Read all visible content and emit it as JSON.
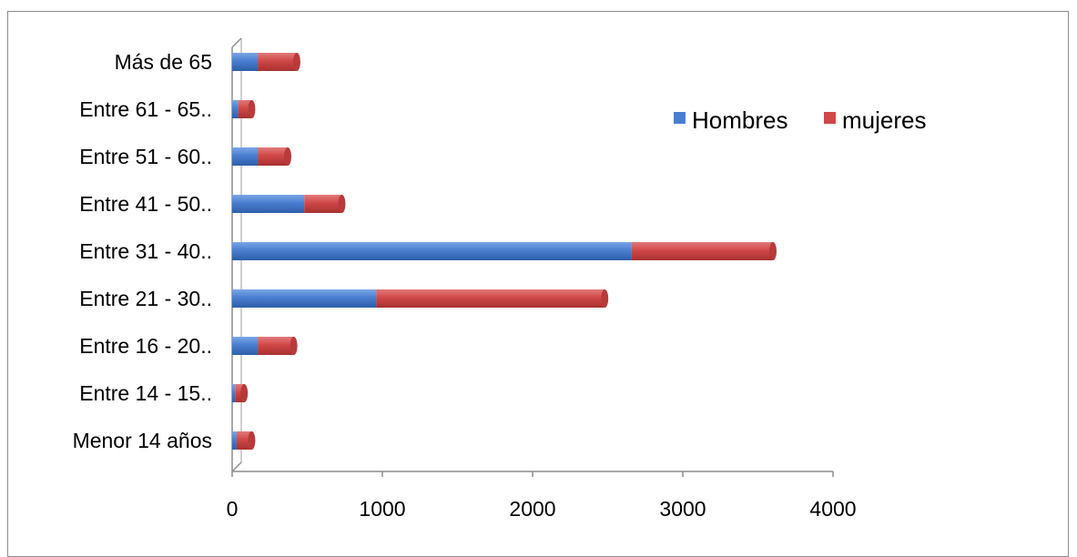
{
  "chart_data": {
    "type": "bar",
    "orientation": "horizontal",
    "stacked": true,
    "categories": [
      "Menor 14 años",
      "Entre 14 - 15..",
      "Entre 16 - 20..",
      "Entre 21 - 30..",
      "Entre 31 - 40..",
      "Entre 41 - 50..",
      "Entre 51 - 60..",
      "Entre 61 - 65..",
      "Más de 65"
    ],
    "series": [
      {
        "name": "Hombres",
        "color": "#4a7ed0",
        "values": [
          30,
          20,
          170,
          960,
          2660,
          480,
          170,
          40,
          170
        ]
      },
      {
        "name": "mujeres",
        "color": "#d04848",
        "values": [
          100,
          60,
          240,
          1520,
          940,
          250,
          200,
          90,
          260
        ]
      }
    ],
    "xlim": [
      0,
      4000
    ],
    "xticks": [
      "0",
      "1000",
      "2000",
      "3000",
      "4000"
    ],
    "grid": false,
    "legend_position": "top-right"
  }
}
